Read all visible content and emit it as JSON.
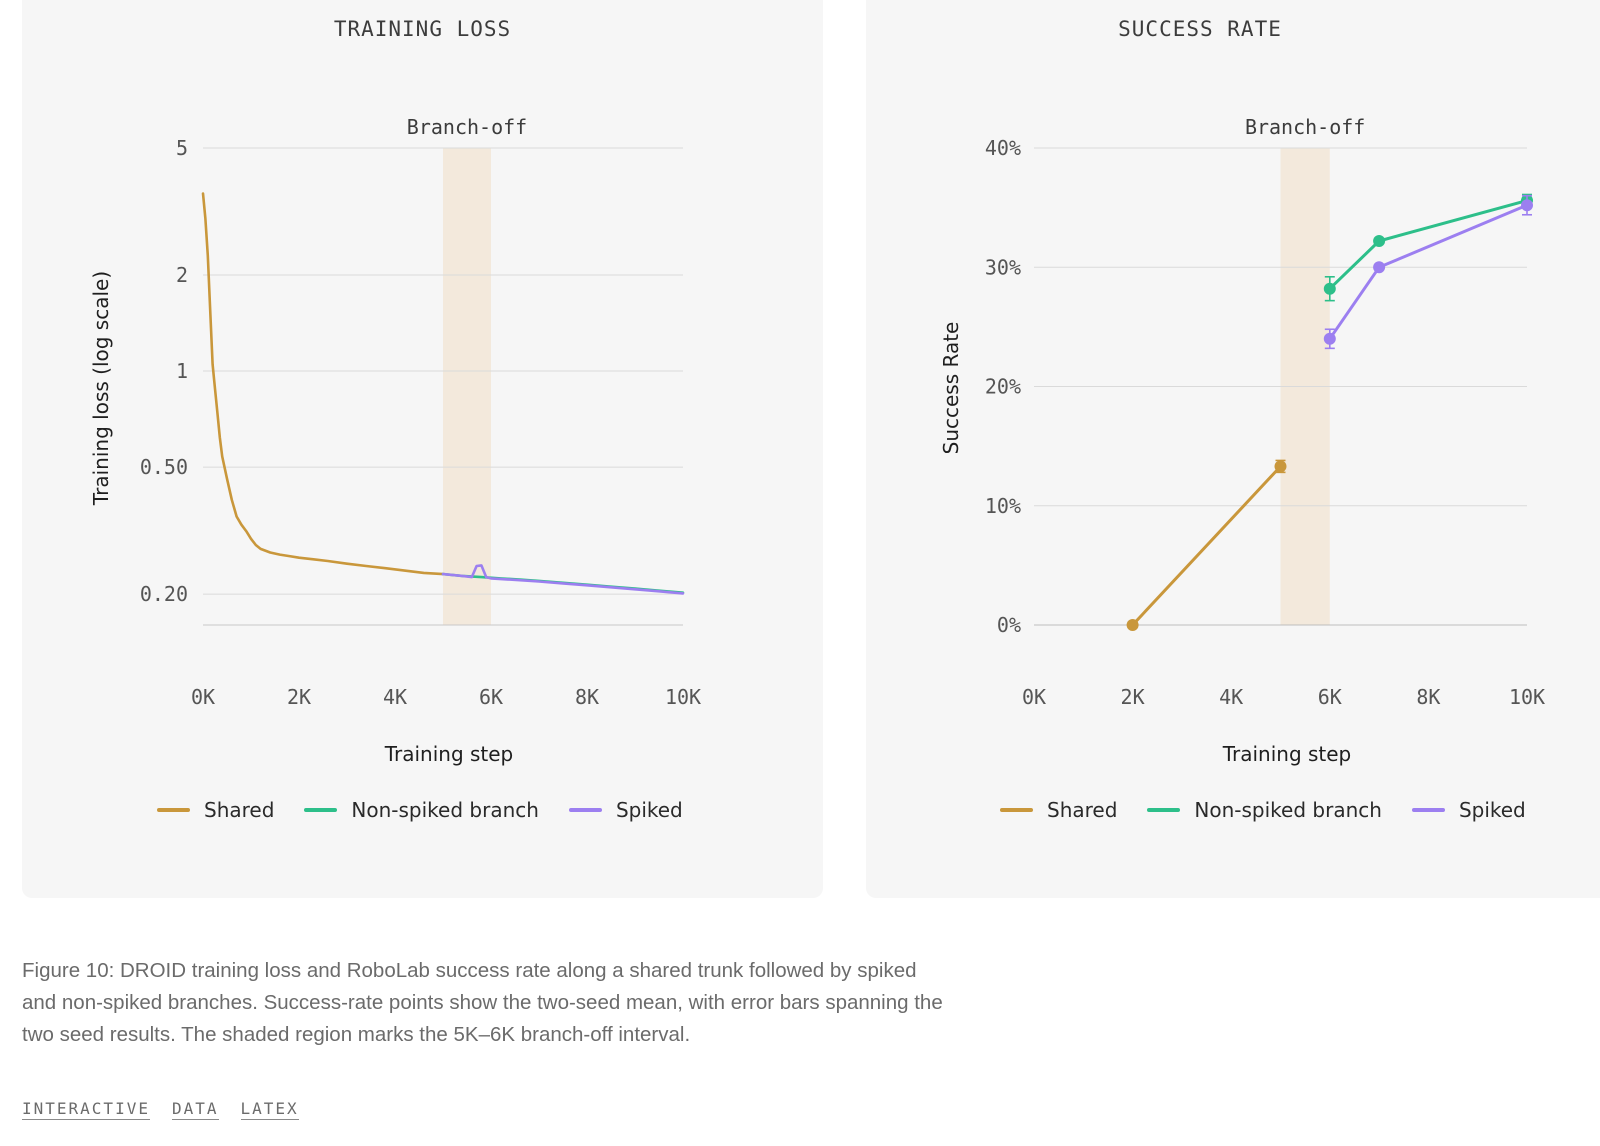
{
  "figure": {
    "caption": "Figure 10: DROID training loss and RoboLab success rate along a shared trunk followed by spiked and non-spiked branches. Success-rate points show the two-seed mean, with error bars spanning the two seed results. The shaded region marks the 5K–6K branch-off interval.",
    "links": [
      "INTERACTIVE",
      "DATA",
      "LATEX"
    ]
  },
  "colors": {
    "shared": "#c9973b",
    "non_spiked": "#2dbf8a",
    "spiked": "#9c7ff0",
    "band": "#f3e9dc",
    "grid": "#dadada",
    "panel": "#f6f6f6"
  },
  "chart_data": [
    {
      "type": "line",
      "panel_title": "TRAINING LOSS",
      "annotation": "Branch-off",
      "xlabel": "Training step",
      "ylabel": "Training loss (log scale)",
      "scale_y": "log",
      "xlim": [
        0,
        10000
      ],
      "ylim": [
        0.16,
        5
      ],
      "x_ticks": [
        0,
        2000,
        4000,
        6000,
        8000,
        10000
      ],
      "x_tick_labels": [
        "0K",
        "2K",
        "4K",
        "6K",
        "8K",
        "10K"
      ],
      "y_ticks": [
        5,
        2,
        1,
        0.5,
        0.2
      ],
      "y_tick_labels": [
        "5",
        "2",
        "1",
        "0.50",
        "0.20"
      ],
      "shaded_region": [
        5000,
        6000
      ],
      "legend": [
        "Shared",
        "Non-spiked branch",
        "Spiked"
      ],
      "legend_position": "bottom",
      "series": [
        {
          "name": "Shared",
          "x": [
            0,
            50,
            100,
            150,
            200,
            250,
            300,
            350,
            400,
            500,
            600,
            700,
            800,
            900,
            1000,
            1100,
            1200,
            1400,
            1600,
            1800,
            2000,
            2300,
            2600,
            3000,
            3400,
            3800,
            4200,
            4600,
            5000
          ],
          "y": [
            3.6,
            3.0,
            2.3,
            1.55,
            1.05,
            0.88,
            0.74,
            0.62,
            0.54,
            0.46,
            0.395,
            0.35,
            0.33,
            0.315,
            0.298,
            0.285,
            0.277,
            0.27,
            0.266,
            0.263,
            0.26,
            0.257,
            0.254,
            0.249,
            0.245,
            0.241,
            0.237,
            0.233,
            0.231
          ]
        },
        {
          "name": "Non-spiked branch",
          "x": [
            5000,
            5400,
            5800,
            6200,
            6600,
            7000,
            7500,
            8000,
            8500,
            9000,
            9500,
            10000
          ],
          "y": [
            0.231,
            0.228,
            0.226,
            0.224,
            0.222,
            0.22,
            0.217,
            0.214,
            0.211,
            0.208,
            0.205,
            0.202
          ]
        },
        {
          "name": "Spiked",
          "x": [
            5000,
            5400,
            5600,
            5700,
            5800,
            5900,
            6000,
            6400,
            7000,
            7500,
            8000,
            8500,
            9000,
            9500,
            10000
          ],
          "y": [
            0.231,
            0.228,
            0.226,
            0.245,
            0.246,
            0.226,
            0.224,
            0.222,
            0.219,
            0.216,
            0.213,
            0.21,
            0.207,
            0.204,
            0.201
          ]
        }
      ]
    },
    {
      "type": "line",
      "panel_title": "SUCCESS RATE",
      "annotation": "Branch-off",
      "xlabel": "Training step",
      "ylabel": "Success Rate",
      "xlim": [
        0,
        10000
      ],
      "ylim": [
        0,
        40
      ],
      "x_ticks": [
        0,
        2000,
        4000,
        6000,
        8000,
        10000
      ],
      "x_tick_labels": [
        "0K",
        "2K",
        "4K",
        "6K",
        "8K",
        "10K"
      ],
      "y_ticks": [
        0,
        10,
        20,
        30,
        40
      ],
      "y_tick_labels": [
        "0%",
        "10%",
        "20%",
        "30%",
        "40%"
      ],
      "shaded_region": [
        5000,
        6000
      ],
      "legend": [
        "Shared",
        "Non-spiked branch",
        "Spiked"
      ],
      "legend_position": "bottom",
      "series": [
        {
          "name": "Shared",
          "x": [
            2000,
            5000
          ],
          "y": [
            0,
            13.3
          ],
          "err_low": [
            0,
            12.8
          ],
          "err_high": [
            0,
            13.8
          ]
        },
        {
          "name": "Non-spiked branch",
          "x": [
            6000,
            7000,
            10000
          ],
          "y": [
            28.2,
            32.2,
            35.6
          ],
          "err_low": [
            27.2,
            32.2,
            35.1
          ],
          "err_high": [
            29.2,
            32.2,
            36.1
          ]
        },
        {
          "name": "Spiked",
          "x": [
            6000,
            7000,
            10000
          ],
          "y": [
            24.0,
            30.0,
            35.2
          ],
          "err_low": [
            23.2,
            30.0,
            34.4
          ],
          "err_high": [
            24.8,
            30.0,
            36.0
          ]
        }
      ]
    }
  ]
}
